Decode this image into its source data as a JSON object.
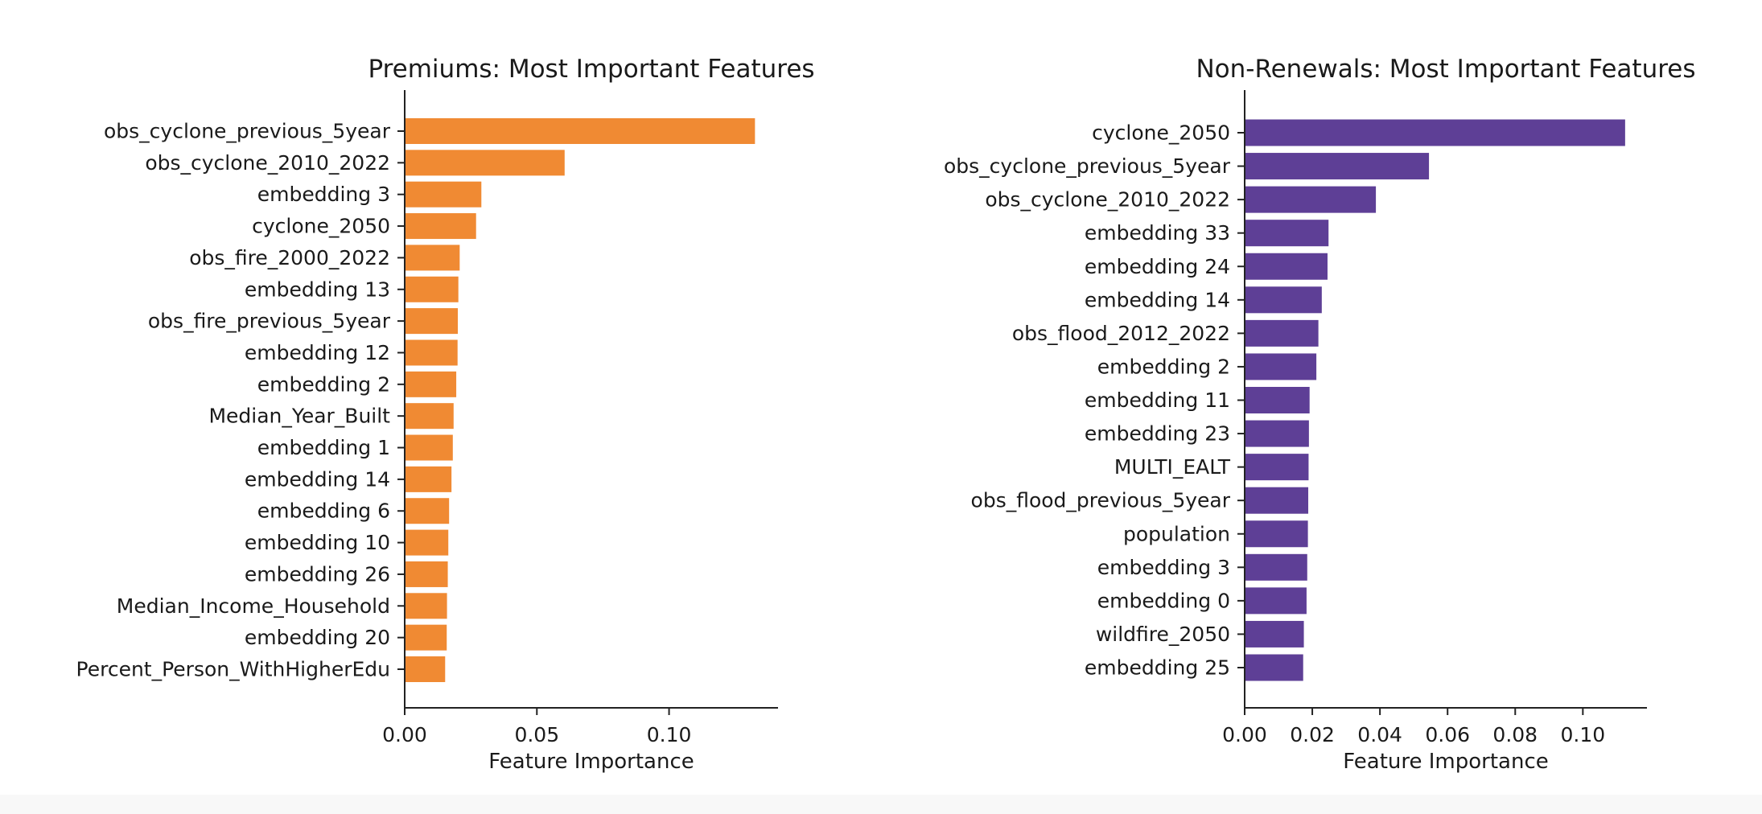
{
  "chart_data": [
    {
      "type": "bar",
      "orientation": "horizontal",
      "title": "Premiums: Most Important Features",
      "xlabel": "Feature Importance",
      "ylabel": "",
      "color": "#F08A33",
      "xlim": [
        0,
        0.14
      ],
      "xticks": [
        0.0,
        0.05,
        0.1
      ],
      "xtick_labels": [
        "0.00",
        "0.05",
        "0.10"
      ],
      "categories": [
        "obs_cyclone_previous_5year",
        "obs_cyclone_2010_2022",
        "embedding 3",
        "cyclone_2050",
        "obs_fire_2000_2022",
        "embedding 13",
        "obs_fire_previous_5year",
        "embedding 12",
        "embedding 2",
        "Median_Year_Built",
        "embedding 1",
        "embedding 14",
        "embedding 6",
        "embedding 10",
        "embedding 26",
        "Median_Income_Household",
        "embedding 20",
        "Percent_Person_WithHigherEdu"
      ],
      "values": [
        0.1325,
        0.0605,
        0.029,
        0.027,
        0.0208,
        0.0203,
        0.0201,
        0.02,
        0.0195,
        0.0185,
        0.0182,
        0.0177,
        0.0168,
        0.0165,
        0.0163,
        0.016,
        0.0159,
        0.0153
      ]
    },
    {
      "type": "bar",
      "orientation": "horizontal",
      "title": "Non-Renewals: Most Important Features",
      "xlabel": "Feature Importance",
      "ylabel": "",
      "color": "#5E3F96",
      "xlim": [
        0,
        0.118
      ],
      "xticks": [
        0.0,
        0.02,
        0.04,
        0.06,
        0.08,
        0.1
      ],
      "xtick_labels": [
        "0.00",
        "0.02",
        "0.04",
        "0.06",
        "0.08",
        "0.10"
      ],
      "categories": [
        "cyclone_2050",
        "obs_cyclone_previous_5year",
        "obs_cyclone_2010_2022",
        "embedding 33",
        "embedding 24",
        "embedding 14",
        "obs_flood_2012_2022",
        "embedding 2",
        "embedding 11",
        "embedding 23",
        "MULTI_EALT",
        "obs_flood_previous_5year",
        "population",
        "embedding 3",
        "embedding 0",
        "wildfire_2050",
        "embedding 25"
      ],
      "values": [
        0.1125,
        0.0545,
        0.0388,
        0.0248,
        0.0245,
        0.0228,
        0.0218,
        0.0212,
        0.0192,
        0.019,
        0.0189,
        0.0188,
        0.0187,
        0.0185,
        0.0183,
        0.0175,
        0.0173
      ]
    }
  ]
}
